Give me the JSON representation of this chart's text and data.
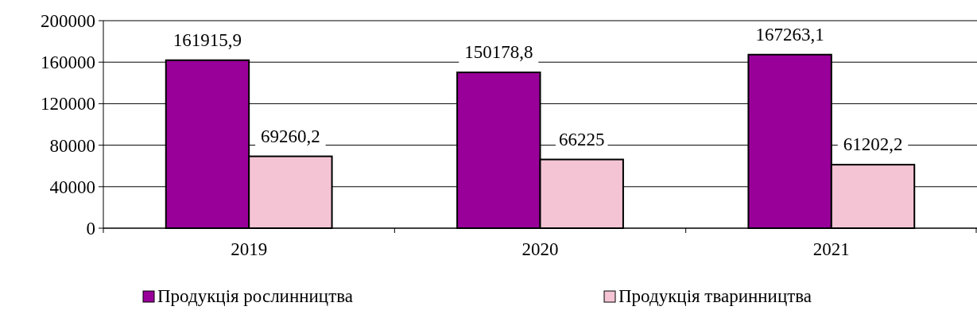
{
  "chart_data": {
    "type": "bar",
    "categories": [
      "2019",
      "2020",
      "2021"
    ],
    "series": [
      {
        "name": "Продукція рослинництва",
        "color": "#990099",
        "values": [
          161915.9,
          150178.8,
          167263.1
        ],
        "value_labels": [
          "161915,9",
          "150178,8",
          "167263,1"
        ]
      },
      {
        "name": "Продукція тваринництва",
        "color": "#f4c4d4",
        "values": [
          69260.2,
          66225,
          61202.2
        ],
        "value_labels": [
          "69260,2",
          "66225",
          "61202,2"
        ]
      }
    ],
    "ylim": [
      0,
      200000
    ],
    "yticks": [
      0,
      40000,
      80000,
      120000,
      160000,
      200000
    ],
    "grid": "y",
    "legend": "bottom"
  }
}
